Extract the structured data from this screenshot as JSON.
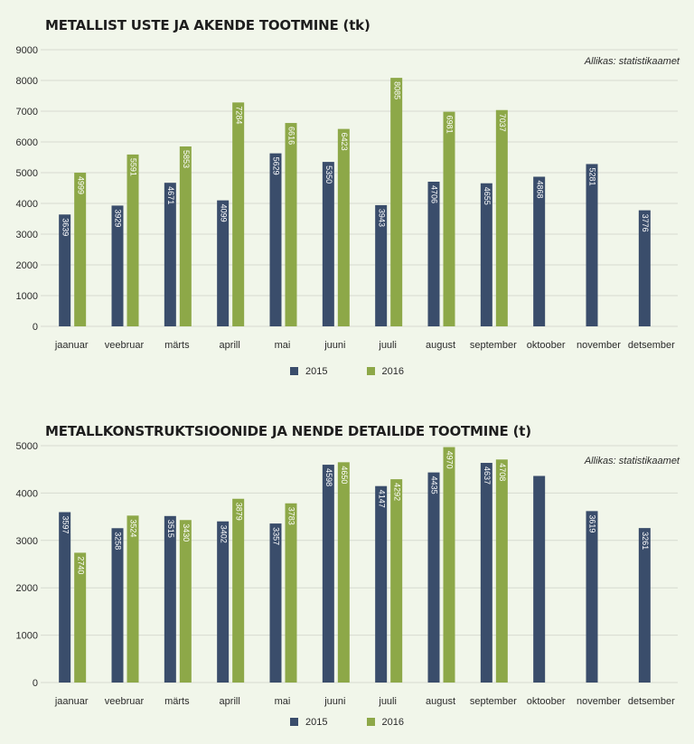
{
  "colors": {
    "s2015": "#3a4d6b",
    "s2016": "#8da848",
    "grid": "#d6dad0",
    "text": "#2a2a2a"
  },
  "chart_data": [
    {
      "type": "bar",
      "title": "METALLIST USTE JA AKENDE TOOTMINE (tk)",
      "source": "Allikas: statistikaamet",
      "categories": [
        "jaanuar",
        "veebruar",
        "märts",
        "aprill",
        "mai",
        "juuni",
        "juuli",
        "august",
        "september",
        "oktoober",
        "november",
        "detsember"
      ],
      "ylim": [
        0,
        9000
      ],
      "yticks": [
        0,
        1000,
        2000,
        3000,
        4000,
        5000,
        6000,
        7000,
        8000,
        9000
      ],
      "series": [
        {
          "name": "2015",
          "values": [
            3639,
            3929,
            4671,
            4099,
            5629,
            5350,
            3943,
            4706,
            4655,
            4868,
            5281,
            3776
          ],
          "labels": [
            "3639",
            "3929",
            "4671",
            "4099",
            "5629",
            "5350",
            "3943",
            "4706",
            "4655",
            "4868",
            "5281",
            "3776"
          ]
        },
        {
          "name": "2016",
          "values": [
            4999,
            5591,
            5853,
            7284,
            6616,
            6423,
            8085,
            6981,
            7037,
            null,
            null,
            null
          ],
          "labels": [
            "4999",
            "5591",
            "5853",
            "7284",
            "6616",
            "6423",
            "8085",
            "6981",
            "7037",
            "",
            "",
            ""
          ]
        }
      ],
      "legend_position": "bottom",
      "grid": true
    },
    {
      "type": "bar",
      "title": "METALLKONSTRUKTSIOONIDE JA NENDE DETAILIDE TOOTMINE (t)",
      "source": "Allikas: statistikaamet",
      "categories": [
        "jaanuar",
        "veebruar",
        "märts",
        "aprill",
        "mai",
        "juuni",
        "juuli",
        "august",
        "september",
        "oktoober",
        "november",
        "detsember"
      ],
      "ylim": [
        0,
        5000
      ],
      "yticks": [
        0,
        1000,
        2000,
        3000,
        4000,
        5000
      ],
      "series": [
        {
          "name": "2015",
          "values": [
            3597,
            3258,
            3515,
            3402,
            3357,
            4598,
            4147,
            4435,
            4637,
            4361,
            3619,
            3261
          ],
          "labels": [
            "3597",
            "3258",
            "3515",
            "3402",
            "3357",
            "4598",
            "4147",
            "4435",
            "4637",
            "",
            "3619",
            "3261"
          ]
        },
        {
          "name": "2016",
          "values": [
            2740,
            3524,
            3430,
            3879,
            3783,
            4650,
            4292,
            4970,
            4708,
            null,
            null,
            null
          ],
          "labels": [
            "2740",
            "3524",
            "3430",
            "3879",
            "3783",
            "4650",
            "4292",
            "4970",
            "4708",
            "",
            "",
            ""
          ]
        }
      ],
      "legend_position": "bottom",
      "grid": true
    }
  ]
}
